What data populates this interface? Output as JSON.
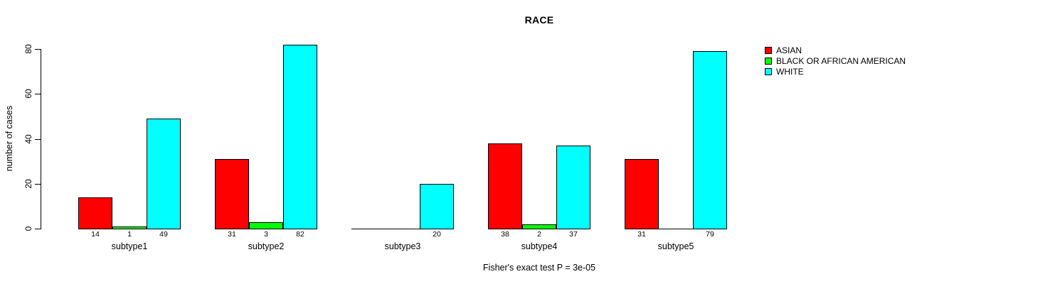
{
  "chart_data": {
    "type": "bar",
    "title": "RACE",
    "ylabel": "number of cases",
    "xlabel": "",
    "footnote": "Fisher's exact test P = 3e-05",
    "categories": [
      "subtype1",
      "subtype2",
      "subtype3",
      "subtype4",
      "subtype5"
    ],
    "series": [
      {
        "name": "ASIAN",
        "color": "#FF0000",
        "values": [
          14,
          31,
          0,
          38,
          31
        ]
      },
      {
        "name": "BLACK OR AFRICAN AMERICAN",
        "color": "#00FF00",
        "values": [
          1,
          3,
          0,
          2,
          0
        ]
      },
      {
        "name": "WHITE",
        "color": "#00FFFF",
        "values": [
          49,
          82,
          20,
          37,
          79
        ]
      }
    ],
    "value_labels_shown": true,
    "zero_values_unlabeled": true,
    "yticks": [
      0,
      20,
      40,
      60,
      80
    ],
    "ylim": [
      0,
      85
    ],
    "grid": false,
    "legend_position": "top-right",
    "bar_border_color": "#000000",
    "axis_color": "#000000",
    "text_color": "#000000",
    "background_color": "#FFFFFF"
  }
}
